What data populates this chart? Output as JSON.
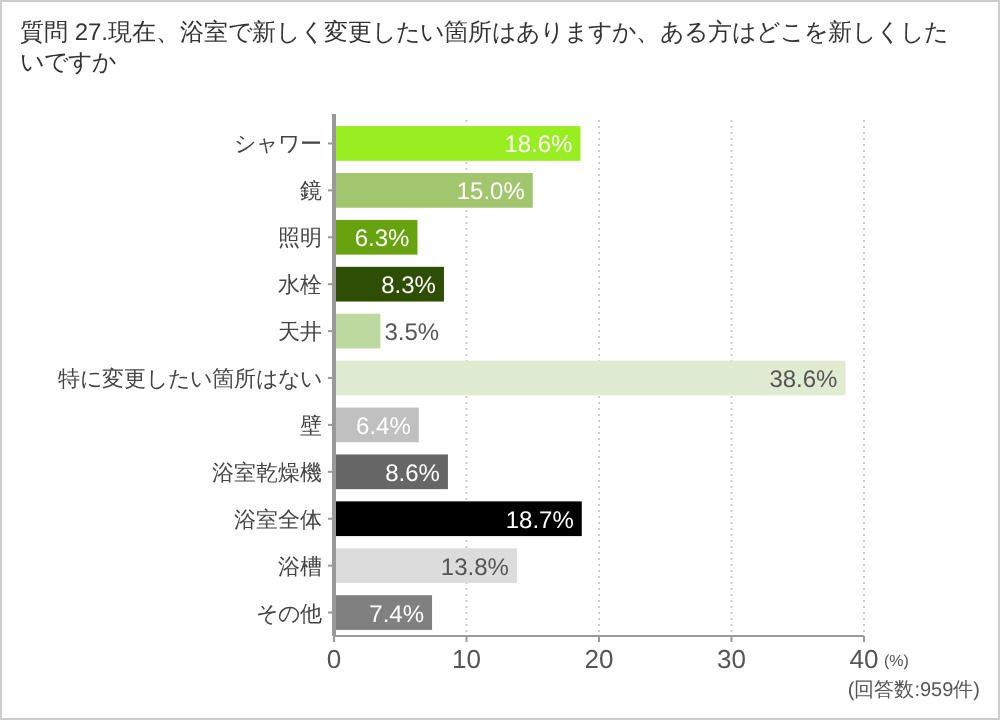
{
  "chart_data": {
    "type": "bar",
    "orientation": "horizontal",
    "title": "質問 27.現在、浴室で新しく変更したい箇所はありますか、ある方はどこを新しくしたいですか",
    "categories": [
      "シャワー",
      "鏡",
      "照明",
      "水栓",
      "天井",
      "特に変更したい箇所はない",
      "壁",
      "浴室乾燥機",
      "浴室全体",
      "浴槽",
      "その他"
    ],
    "values": [
      18.6,
      15.0,
      6.3,
      8.3,
      3.5,
      38.6,
      6.4,
      8.6,
      18.7,
      13.8,
      7.4
    ],
    "value_labels": [
      "18.6%",
      "15.0%",
      "6.3%",
      "8.3%",
      "3.5%",
      "38.6%",
      "6.4%",
      "8.6%",
      "18.7%",
      "13.8%",
      "7.4%"
    ],
    "colors": [
      "#99ee22",
      "#a2c66e",
      "#66a30e",
      "#2e4f03",
      "#bdd9a0",
      "#e0ecd2",
      "#c0c0c0",
      "#666666",
      "#000000",
      "#dcdcdc",
      "#808080"
    ],
    "xlim": [
      0,
      40
    ],
    "xticks": [
      0,
      10,
      20,
      30,
      40
    ],
    "xlabel": "(%)",
    "grid": "x",
    "annotations": [
      "(回答数:959件)"
    ]
  }
}
